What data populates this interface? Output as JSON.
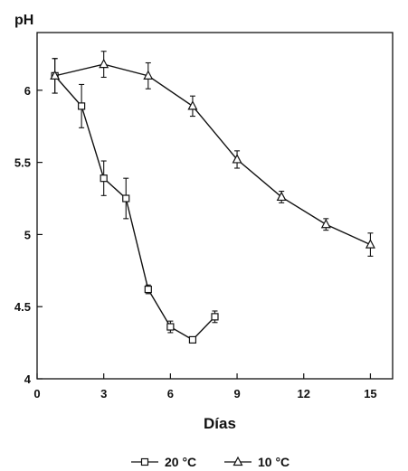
{
  "chart_data": {
    "type": "line",
    "ylabel": "pH",
    "xlabel": "Días",
    "xlim": [
      0,
      16
    ],
    "ylim": [
      4,
      6.4
    ],
    "x_ticks": [
      0,
      3,
      6,
      9,
      12,
      15
    ],
    "y_ticks": [
      4,
      4.5,
      5,
      5.5,
      6
    ],
    "y_tick_labels": [
      "4",
      "4.5",
      "5",
      "5.5",
      "6"
    ],
    "grid": false,
    "legend_position": "bottom-center",
    "series": [
      {
        "name": "20 °C",
        "marker": "square",
        "points": [
          {
            "x": 0.8,
            "y": 6.1,
            "err": 0.12
          },
          {
            "x": 2,
            "y": 5.89,
            "err": 0.15
          },
          {
            "x": 3,
            "y": 5.39,
            "err": 0.12
          },
          {
            "x": 4,
            "y": 5.25,
            "err": 0.14
          },
          {
            "x": 5,
            "y": 4.62,
            "err": 0.03
          },
          {
            "x": 6,
            "y": 4.36,
            "err": 0.04
          },
          {
            "x": 7,
            "y": 4.27,
            "err": 0.02
          },
          {
            "x": 8,
            "y": 4.43,
            "err": 0.04
          }
        ]
      },
      {
        "name": "10 °C",
        "marker": "triangle",
        "points": [
          {
            "x": 0.8,
            "y": 6.1,
            "err": 0.12
          },
          {
            "x": 3,
            "y": 6.18,
            "err": 0.09
          },
          {
            "x": 5,
            "y": 6.1,
            "err": 0.09
          },
          {
            "x": 7,
            "y": 5.89,
            "err": 0.07
          },
          {
            "x": 9,
            "y": 5.52,
            "err": 0.06
          },
          {
            "x": 11,
            "y": 5.26,
            "err": 0.04
          },
          {
            "x": 13,
            "y": 5.07,
            "err": 0.04
          },
          {
            "x": 15,
            "y": 4.93,
            "err": 0.08
          }
        ]
      }
    ]
  }
}
